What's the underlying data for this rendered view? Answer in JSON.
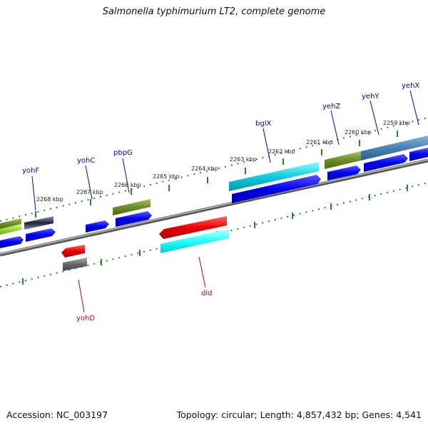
{
  "title": "Salmonella typhimurium LT2, complete genome",
  "footer": {
    "accession": "Accession: NC_003197",
    "stats": "Topology: circular; Length: 4,857,432 bp; Genes: 4,541"
  },
  "scale_labels": [
    "2268 kbp",
    "2267 kbp",
    "2266 kbp",
    "2265 kbp",
    "2264 kbp",
    "2263 kbp",
    "2262 kbp",
    "2261 kbp",
    "2260 kbp",
    "2259 kbp"
  ],
  "gene_labels": {
    "yohF": "yohF",
    "yohC": "yohC",
    "pbpG": "pbpG",
    "bglX": "bglX",
    "yehZ": "yehZ",
    "yehY": "yehY",
    "yehX": "yehX",
    "yohD": "yohD",
    "dld": "dld"
  },
  "colors": {
    "cds": "#0000ee",
    "cog_green": "#6b8e23",
    "cog_cyan": "#00ced1",
    "cog_red": "#ee0000",
    "cog_steel": "#4682b4",
    "cog_grey": "#666666",
    "tick": "#228b22",
    "backbone": "#888888"
  }
}
